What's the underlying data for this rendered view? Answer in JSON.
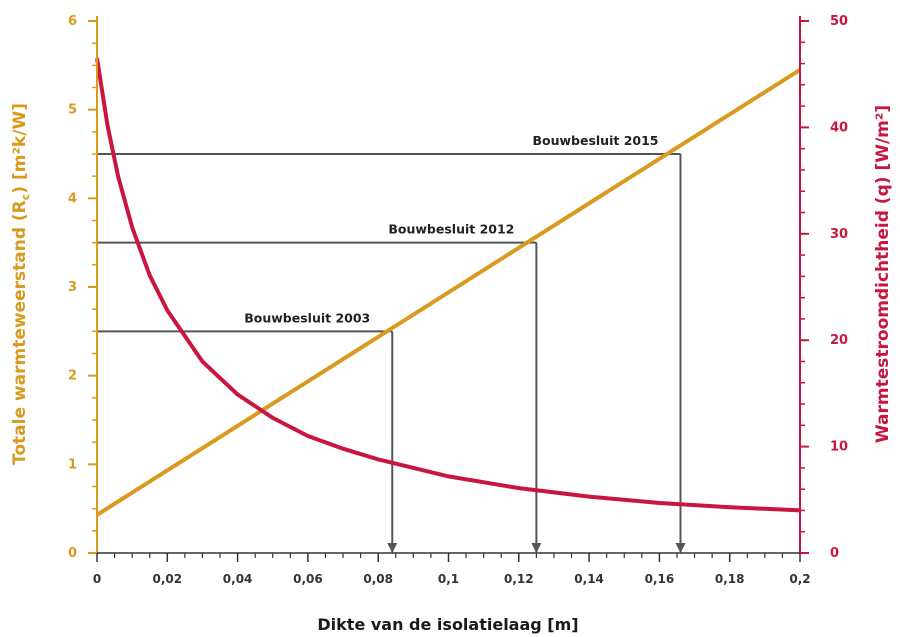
{
  "chart_data": {
    "type": "line",
    "xlabel": "Dikte van de isolatielaag [m]",
    "ylabel_left": "Totale warmteweerstand (R",
    "ylabel_left_sub": "c",
    "ylabel_left_tail": ") [m²k/W]",
    "ylabel_right": "Warmtestroomdichtheid (q) [W/m²]",
    "xlim": [
      0,
      0.2
    ],
    "ylim_left": [
      0,
      6
    ],
    "ylim_right": [
      0,
      50
    ],
    "x_ticks": [
      "0",
      "0,02",
      "0,04",
      "0,06",
      "0,08",
      "0,1",
      "0,12",
      "0,14",
      "0,16",
      "0,18",
      "0,2"
    ],
    "y_left_ticks": [
      "0",
      "1",
      "2",
      "3",
      "4",
      "5",
      "6"
    ],
    "y_right_ticks": [
      "0",
      "10",
      "20",
      "30",
      "40",
      "50"
    ],
    "colors": {
      "rc": "#d99a1f",
      "q": "#c8163f",
      "guide": "#555555"
    },
    "series": [
      {
        "axis": "left",
        "x": [
          0,
          0.2
        ],
        "y": [
          0.43,
          5.45
        ]
      },
      {
        "axis": "right",
        "x": [
          0,
          0.003,
          0.006,
          0.01,
          0.015,
          0.02,
          0.03,
          0.04,
          0.05,
          0.06,
          0.07,
          0.08,
          0.1,
          0.12,
          0.14,
          0.16,
          0.18,
          0.2
        ],
        "y": [
          46.5,
          40.2,
          35.4,
          30.6,
          26.1,
          22.8,
          18.0,
          14.9,
          12.7,
          11.0,
          9.8,
          8.8,
          7.2,
          6.1,
          5.3,
          4.7,
          4.3,
          4.0
        ]
      }
    ],
    "annotations": [
      {
        "label": "Bouwbesluit 2003",
        "x": 0.084,
        "y": 2.5
      },
      {
        "label": "Bouwbesluit 2012",
        "x": 0.125,
        "y": 3.5
      },
      {
        "label": "Bouwbesluit 2015",
        "x": 0.166,
        "y": 4.5
      }
    ]
  }
}
